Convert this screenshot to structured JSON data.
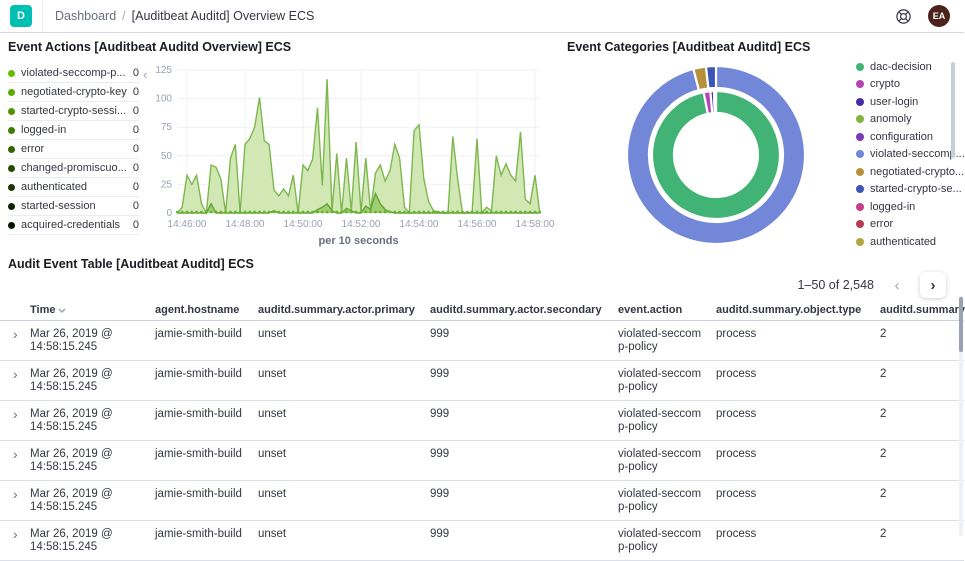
{
  "header": {
    "logo_letter": "D",
    "breadcrumb": {
      "section": "Dashboard",
      "separator": "/",
      "page": "[Auditbeat Auditd] Overview ECS"
    },
    "avatar_initials": "EA",
    "accent_color": "#00BFB3"
  },
  "panels": {
    "event_actions": {
      "title": "Event Actions [Auditbeat Auditd Overview] ECS",
      "collapse_icon": "‹",
      "legend": [
        {
          "label": "violated-seccomp-p...",
          "value": "0",
          "color": "#68BC00"
        },
        {
          "label": "negotiated-crypto-key",
          "value": "0",
          "color": "#5CAB00"
        },
        {
          "label": "started-crypto-sessi...",
          "value": "0",
          "color": "#4E9400"
        },
        {
          "label": "logged-in",
          "value": "0",
          "color": "#407C00"
        },
        {
          "label": "error",
          "value": "0",
          "color": "#326400"
        },
        {
          "label": "changed-promiscuo...",
          "value": "0",
          "color": "#244C00"
        },
        {
          "label": "authenticated",
          "value": "0",
          "color": "#163500"
        },
        {
          "label": "started-session",
          "value": "0",
          "color": "#0B2100"
        },
        {
          "label": "acquired-credentials",
          "value": "0",
          "color": "#041200"
        }
      ]
    },
    "event_categories": {
      "title": "Event Categories [Auditbeat Auditd] ECS",
      "legend": [
        {
          "label": "dac-decision",
          "color": "#41B374"
        },
        {
          "label": "crypto",
          "color": "#B644B5"
        },
        {
          "label": "user-login",
          "color": "#482DA0"
        },
        {
          "label": "anomoly",
          "color": "#84B33C"
        },
        {
          "label": "configuration",
          "color": "#7B3CB8"
        },
        {
          "label": "violated-seccomp...",
          "color": "#7287D8"
        },
        {
          "label": "negotiated-crypto...",
          "color": "#B5913C"
        },
        {
          "label": "started-crypto-se...",
          "color": "#3C55B5"
        },
        {
          "label": "logged-in",
          "color": "#C33C8E"
        },
        {
          "label": "error",
          "color": "#B53C52"
        },
        {
          "label": "authenticated",
          "color": "#B5A43C"
        }
      ]
    },
    "audit_table": {
      "title": "Audit Event Table [Auditbeat Auditd] ECS",
      "pagination": {
        "range": "1–50 of 2,548",
        "prev": "‹",
        "next": "›"
      },
      "columns": [
        {
          "label": "Time",
          "sortable": true
        },
        {
          "label": "agent.hostname"
        },
        {
          "label": "auditd.summary.actor.primary"
        },
        {
          "label": "auditd.summary.actor.secondary"
        },
        {
          "label": "event.action"
        },
        {
          "label": "auditd.summary.object.type"
        },
        {
          "label": "auditd.summary"
        }
      ],
      "rows": [
        [
          "Mar 26, 2019 @ 14:58:15.245",
          "jamie-smith-build",
          "unset",
          "999",
          "violated-seccomp-policy",
          "process",
          "2"
        ],
        [
          "Mar 26, 2019 @ 14:58:15.245",
          "jamie-smith-build",
          "unset",
          "999",
          "violated-seccomp-policy",
          "process",
          "2"
        ],
        [
          "Mar 26, 2019 @ 14:58:15.245",
          "jamie-smith-build",
          "unset",
          "999",
          "violated-seccomp-policy",
          "process",
          "2"
        ],
        [
          "Mar 26, 2019 @ 14:58:15.245",
          "jamie-smith-build",
          "unset",
          "999",
          "violated-seccomp-policy",
          "process",
          "2"
        ],
        [
          "Mar 26, 2019 @ 14:58:15.245",
          "jamie-smith-build",
          "unset",
          "999",
          "violated-seccomp-policy",
          "process",
          "2"
        ],
        [
          "Mar 26, 2019 @ 14:58:15.245",
          "jamie-smith-build",
          "unset",
          "999",
          "violated-seccomp-policy",
          "process",
          "2"
        ]
      ]
    }
  },
  "chart_data": [
    {
      "type": "area",
      "title": "Event Actions [Auditbeat Auditd Overview] ECS",
      "xlabel": "per 10 seconds",
      "x_ticks": [
        "14:46:00",
        "14:48:00",
        "14:50:00",
        "14:52:00",
        "14:54:00",
        "14:56:00",
        "14:58:00"
      ],
      "y_ticks": [
        0,
        25,
        50,
        75,
        100,
        125
      ],
      "ylim": [
        0,
        125
      ],
      "x_start": "14:45:40",
      "interval_seconds": 10,
      "grid": true,
      "series": [
        {
          "name": "series_1",
          "stroke": "#7CB84E",
          "fill": "#CDE5AC",
          "values": [
            0,
            5,
            33,
            25,
            33,
            8,
            0,
            42,
            40,
            30,
            0,
            48,
            60,
            0,
            60,
            65,
            75,
            101,
            63,
            60,
            20,
            15,
            21,
            15,
            33,
            0,
            42,
            37,
            47,
            92,
            24,
            117,
            2,
            52,
            0,
            48,
            2,
            62,
            1,
            48,
            2,
            35,
            42,
            28,
            37,
            60,
            48,
            5,
            0,
            72,
            77,
            30,
            10,
            2,
            1,
            0,
            0,
            67,
            30,
            0,
            0,
            1,
            65,
            0,
            5,
            2,
            50,
            33,
            43,
            33,
            28,
            71,
            12,
            8,
            33,
            0
          ]
        },
        {
          "name": "series_2",
          "stroke": "#5FA433",
          "fill": "#9BCB6A",
          "values": [
            0,
            0,
            0,
            0,
            0,
            0,
            0,
            8,
            0,
            0,
            0,
            0,
            0,
            0,
            0,
            0,
            0,
            0,
            0,
            0,
            2,
            0,
            0,
            0,
            0,
            0,
            0,
            0,
            0,
            3,
            5,
            8,
            2,
            0,
            0,
            4,
            2,
            0,
            0,
            6,
            3,
            17,
            8,
            3,
            1,
            0,
            0,
            0,
            0,
            0,
            0,
            0,
            0,
            0,
            0,
            0,
            0,
            0,
            0,
            0,
            0,
            0,
            0,
            0,
            0,
            0,
            0,
            0,
            0,
            0,
            0,
            0,
            0,
            0,
            0,
            0
          ]
        }
      ],
      "baseline_dot_color": "#6AB12E"
    },
    {
      "type": "pie",
      "title": "Event Categories [Auditbeat Auditd] ECS",
      "legend_position": "right",
      "rings": [
        {
          "name": "inner",
          "slices": [
            {
              "label": "dac-decision",
              "pct": 96.9,
              "color": "#41B374"
            },
            {
              "label": "crypto",
              "pct": 1.7,
              "color": "#B644B5"
            },
            {
              "label": "user-login",
              "pct": 0.9,
              "color": "#482DA0"
            },
            {
              "label": "anomoly",
              "pct": 0.5,
              "color": "#84B33C"
            }
          ]
        },
        {
          "name": "outer",
          "slices": [
            {
              "label": "violated-seccomp-policy",
              "pct": 95.9,
              "color": "#7287D8"
            },
            {
              "label": "negotiated-crypto-key",
              "pct": 2.3,
              "color": "#B5913C"
            },
            {
              "label": "started-crypto-session",
              "pct": 1.8,
              "color": "#3C55B5"
            }
          ]
        }
      ]
    }
  ]
}
